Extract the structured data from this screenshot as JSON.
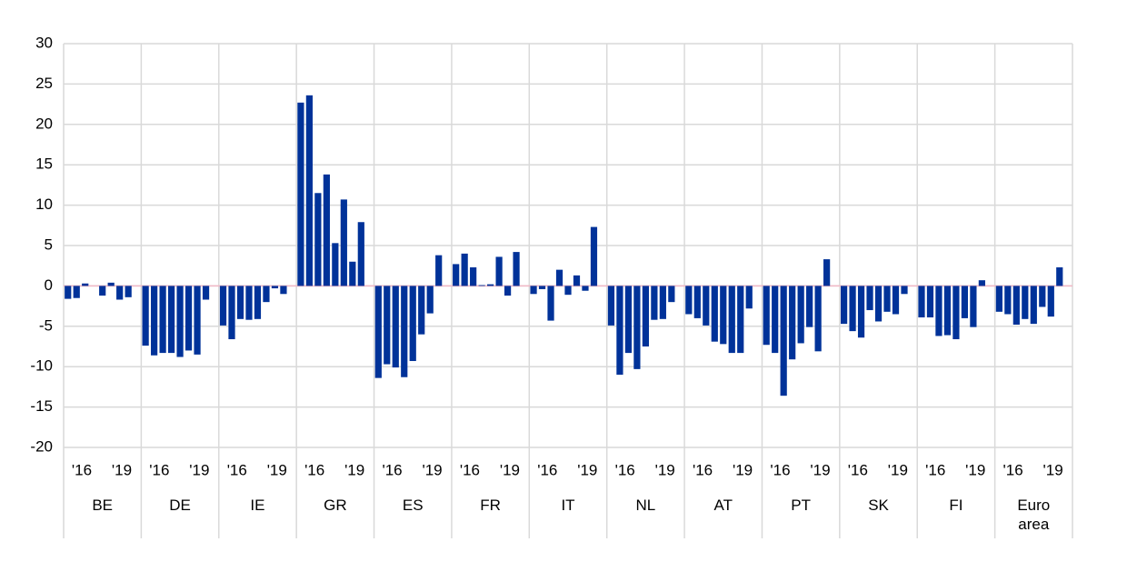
{
  "chart_data": {
    "type": "bar",
    "color": "#003299",
    "ylim": [
      -20,
      30
    ],
    "yticks": [
      -20,
      -15,
      -10,
      -5,
      0,
      5,
      10,
      15,
      20,
      25,
      30
    ],
    "grid": true,
    "groups": [
      {
        "name": "BE",
        "tick_labels": [
          "'16",
          "'19"
        ],
        "values": [
          -1.6,
          -1.5,
          0.3,
          0,
          -1.2,
          0.4,
          -1.7,
          -1.4
        ]
      },
      {
        "name": "DE",
        "tick_labels": [
          "'16",
          "'19"
        ],
        "values": [
          -7.4,
          -8.6,
          -8.3,
          -8.3,
          -8.8,
          -8.0,
          -8.5,
          -1.7
        ]
      },
      {
        "name": "IE",
        "tick_labels": [
          "'16",
          "'19"
        ],
        "values": [
          -4.9,
          -6.6,
          -4.1,
          -4.2,
          -4.1,
          -2.0,
          -0.3,
          -1.0
        ]
      },
      {
        "name": "GR",
        "tick_labels": [
          "'16",
          "'19"
        ],
        "values": [
          22.7,
          23.6,
          11.5,
          13.8,
          5.3,
          10.7,
          3.0,
          7.9
        ]
      },
      {
        "name": "ES",
        "tick_labels": [
          "'16",
          "'19"
        ],
        "values": [
          -11.4,
          -9.7,
          -10.1,
          -11.3,
          -9.3,
          -6.0,
          -3.4,
          3.8
        ]
      },
      {
        "name": "FR",
        "tick_labels": [
          "'16",
          "'19"
        ],
        "values": [
          2.7,
          4.0,
          2.3,
          0.1,
          0.2,
          3.6,
          -1.2,
          4.2
        ]
      },
      {
        "name": "IT",
        "tick_labels": [
          "'16",
          "'19"
        ],
        "values": [
          -1.0,
          -0.4,
          -4.3,
          2.0,
          -1.1,
          1.3,
          -0.6,
          7.3
        ]
      },
      {
        "name": "NL",
        "tick_labels": [
          "'16",
          "'19"
        ],
        "values": [
          -4.9,
          -11.0,
          -8.3,
          -10.3,
          -7.5,
          -4.2,
          -4.1,
          -2.0
        ]
      },
      {
        "name": "AT",
        "tick_labels": [
          "'16",
          "'19"
        ],
        "values": [
          -3.5,
          -4.0,
          -4.9,
          -6.9,
          -7.2,
          -8.3,
          -8.3,
          -2.8
        ]
      },
      {
        "name": "PT",
        "tick_labels": [
          "'16",
          "'19"
        ],
        "values": [
          -7.3,
          -8.3,
          -13.6,
          -9.1,
          -7.1,
          -5.1,
          -8.1,
          3.3
        ]
      },
      {
        "name": "SK",
        "tick_labels": [
          "'16",
          "'19"
        ],
        "values": [
          -4.7,
          -5.6,
          -6.4,
          -3.0,
          -4.4,
          -3.2,
          -3.5,
          -1.0
        ]
      },
      {
        "name": "FI",
        "tick_labels": [
          "'16",
          "'19"
        ],
        "values": [
          -3.9,
          -3.9,
          -6.2,
          -6.1,
          -6.6,
          -4.0,
          -5.1,
          0.7
        ]
      },
      {
        "name": "Euro area",
        "tick_labels": [
          "'16",
          "'19"
        ],
        "values": [
          -3.2,
          -3.5,
          -4.8,
          -4.1,
          -4.7,
          -2.6,
          -3.8,
          2.3
        ]
      }
    ]
  }
}
